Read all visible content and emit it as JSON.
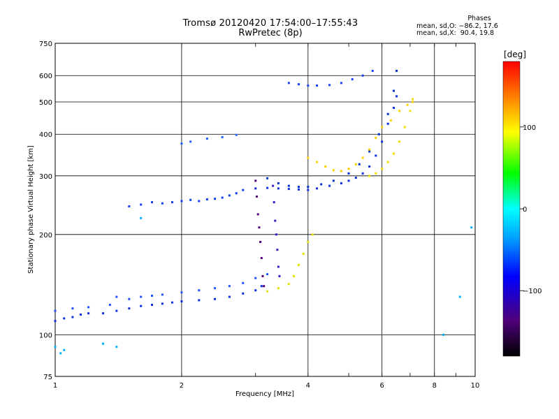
{
  "header": {
    "title_line1": "Tromsø 20120420 17:54:00–17:55:43",
    "title_line2": "RwPretec (8p)"
  },
  "phases_box": {
    "heading": "Phases",
    "line_o": "mean, sd,O: −86.2, 17.6",
    "line_x": "mean, sd,X:  90.4, 19.8"
  },
  "chart_data": {
    "type": "scatter",
    "title": "Tromsø 20120420 17:54:00–17:55:43",
    "subtitle": "RwPretec (8p)",
    "xlabel": "Frequency [MHz]",
    "ylabel": "Stationary phase Virtual Height [km]",
    "x_scale": "log",
    "y_scale": "log",
    "xlim": [
      1,
      10
    ],
    "ylim": [
      75,
      750
    ],
    "x_ticks": [
      1,
      2,
      4,
      6,
      8,
      10
    ],
    "x_tick_labels": [
      "1",
      "2",
      "4",
      "6",
      "8",
      "10"
    ],
    "y_ticks": [
      75,
      100,
      200,
      300,
      400,
      500,
      600,
      750
    ],
    "y_tick_labels": [
      "75",
      "100",
      "200",
      "300",
      "400",
      "500",
      "600",
      "750"
    ],
    "grid": true,
    "colorbar": {
      "label": "[deg]",
      "range": [
        -180,
        180
      ],
      "tick_values": [
        100,
        0,
        -100
      ],
      "tick_labels": [
        "100",
        "0",
        "−100"
      ],
      "colors": [
        "#000000",
        "#50007a",
        "#0000ff",
        "#00a0ff",
        "#00ffff",
        "#00ff00",
        "#ffff00",
        "#ff8000",
        "#ff0000"
      ]
    },
    "series": [
      {
        "color": "#1030e0",
        "points": [
          [
            1.0,
            110
          ],
          [
            1.05,
            112
          ],
          [
            1.1,
            113
          ],
          [
            1.15,
            115
          ],
          [
            1.2,
            116
          ],
          [
            1.3,
            116
          ],
          [
            1.4,
            118
          ],
          [
            1.5,
            120
          ],
          [
            1.6,
            122
          ],
          [
            1.7,
            123
          ],
          [
            1.8,
            124
          ],
          [
            1.9,
            125
          ],
          [
            2.0,
            126
          ],
          [
            2.2,
            127
          ],
          [
            2.4,
            128
          ],
          [
            2.6,
            130
          ],
          [
            2.8,
            133
          ],
          [
            3.0,
            136
          ],
          [
            3.1,
            140
          ]
        ]
      },
      {
        "color": "#2050ff",
        "points": [
          [
            1.0,
            118
          ],
          [
            1.1,
            120
          ],
          [
            1.2,
            121
          ],
          [
            1.35,
            123
          ],
          [
            1.4,
            130
          ],
          [
            1.5,
            128
          ],
          [
            1.6,
            130
          ],
          [
            1.7,
            131
          ],
          [
            1.8,
            132
          ],
          [
            2.0,
            134
          ],
          [
            2.2,
            136
          ],
          [
            2.4,
            138
          ],
          [
            2.6,
            140
          ],
          [
            2.8,
            143
          ],
          [
            3.0,
            148
          ],
          [
            3.2,
            152
          ]
        ]
      },
      {
        "color": "#1040f0",
        "points": [
          [
            1.5,
            243
          ],
          [
            1.6,
            246
          ],
          [
            1.7,
            250
          ],
          [
            1.8,
            248
          ],
          [
            1.9,
            250
          ],
          [
            2.0,
            252
          ],
          [
            2.1,
            254
          ],
          [
            2.2,
            252
          ],
          [
            2.3,
            255
          ],
          [
            2.4,
            256
          ],
          [
            2.5,
            258
          ],
          [
            2.6,
            262
          ],
          [
            2.7,
            266
          ],
          [
            2.8,
            272
          ]
        ]
      },
      {
        "color": "#2060ff",
        "points": [
          [
            2.0,
            375
          ],
          [
            2.1,
            380
          ],
          [
            2.3,
            388
          ],
          [
            2.5,
            392
          ],
          [
            2.7,
            398
          ]
        ]
      },
      {
        "color": "#1030e0",
        "points": [
          [
            3.0,
            275
          ],
          [
            3.2,
            276
          ],
          [
            3.4,
            275
          ],
          [
            3.6,
            274
          ],
          [
            3.8,
            273
          ],
          [
            4.0,
            272
          ],
          [
            4.2,
            275
          ],
          [
            4.5,
            280
          ],
          [
            4.8,
            285
          ],
          [
            5.0,
            290
          ],
          [
            5.2,
            296
          ],
          [
            5.4,
            305
          ],
          [
            5.6,
            320
          ],
          [
            5.8,
            345
          ],
          [
            6.0,
            380
          ],
          [
            6.2,
            430
          ],
          [
            6.4,
            480
          ],
          [
            6.5,
            520
          ]
        ]
      },
      {
        "color": "#0030d0",
        "points": [
          [
            3.2,
            295
          ],
          [
            3.4,
            285
          ],
          [
            3.6,
            280
          ],
          [
            3.8,
            278
          ],
          [
            4.0,
            278
          ],
          [
            4.3,
            283
          ],
          [
            4.6,
            290
          ],
          [
            5.0,
            305
          ],
          [
            5.3,
            325
          ],
          [
            5.6,
            355
          ],
          [
            5.9,
            400
          ],
          [
            6.2,
            460
          ],
          [
            6.4,
            540
          ],
          [
            6.5,
            620
          ]
        ]
      },
      {
        "color": "#1a40ff",
        "points": [
          [
            3.6,
            570
          ],
          [
            3.8,
            565
          ],
          [
            4.0,
            560
          ],
          [
            4.2,
            560
          ],
          [
            4.5,
            562
          ],
          [
            4.8,
            570
          ],
          [
            5.1,
            585
          ],
          [
            5.4,
            600
          ],
          [
            5.7,
            620
          ]
        ]
      },
      {
        "color": "#e8e000",
        "points": [
          [
            3.2,
            135
          ],
          [
            3.4,
            138
          ],
          [
            3.6,
            142
          ],
          [
            3.7,
            150
          ],
          [
            3.8,
            162
          ],
          [
            3.9,
            175
          ],
          [
            4.0,
            190
          ],
          [
            4.1,
            200
          ]
        ]
      },
      {
        "color": "#ffd000",
        "points": [
          [
            4.0,
            340
          ],
          [
            4.2,
            330
          ],
          [
            4.4,
            320
          ],
          [
            4.6,
            312
          ],
          [
            4.8,
            310
          ],
          [
            5.0,
            315
          ],
          [
            5.2,
            325
          ],
          [
            5.4,
            340
          ],
          [
            5.6,
            360
          ],
          [
            5.8,
            390
          ],
          [
            6.0,
            420
          ],
          [
            6.3,
            440
          ],
          [
            6.6,
            470
          ],
          [
            6.9,
            490
          ],
          [
            7.1,
            500
          ]
        ]
      },
      {
        "color": "#f0e000",
        "points": [
          [
            5.6,
            300
          ],
          [
            5.8,
            305
          ],
          [
            6.0,
            315
          ],
          [
            6.2,
            330
          ],
          [
            6.4,
            350
          ],
          [
            6.6,
            380
          ],
          [
            6.8,
            420
          ],
          [
            7.0,
            470
          ],
          [
            7.1,
            510
          ]
        ]
      },
      {
        "color": "#50007a",
        "points": [
          [
            3.0,
            290
          ],
          [
            3.02,
            260
          ],
          [
            3.04,
            230
          ],
          [
            3.06,
            210
          ],
          [
            3.08,
            190
          ],
          [
            3.1,
            170
          ],
          [
            3.12,
            150
          ],
          [
            3.14,
            140
          ]
        ]
      },
      {
        "color": "#3020c0",
        "points": [
          [
            3.3,
            280
          ],
          [
            3.32,
            250
          ],
          [
            3.34,
            220
          ],
          [
            3.36,
            200
          ],
          [
            3.38,
            180
          ],
          [
            3.4,
            160
          ],
          [
            3.42,
            150
          ]
        ]
      },
      {
        "color": "#00b0ff",
        "points": [
          [
            1.0,
            92
          ],
          [
            1.03,
            88
          ],
          [
            1.05,
            90
          ],
          [
            1.3,
            94
          ],
          [
            1.4,
            92
          ],
          [
            1.6,
            224
          ],
          [
            8.4,
            100
          ],
          [
            9.2,
            130
          ],
          [
            9.8,
            210
          ]
        ]
      }
    ]
  }
}
